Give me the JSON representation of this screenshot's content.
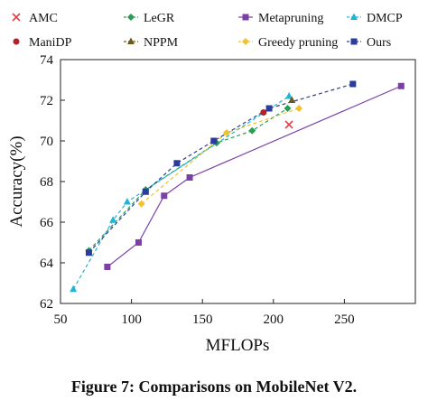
{
  "chart_data": {
    "type": "line",
    "xlabel": "MFLOPs",
    "ylabel": "Accuracy(%)",
    "xlim": [
      50,
      300
    ],
    "ylim": [
      62,
      74
    ],
    "xticks": [
      50,
      100,
      150,
      200,
      250
    ],
    "yticks": [
      62,
      64,
      66,
      68,
      70,
      72,
      74
    ],
    "grid": false,
    "legend_position": "top",
    "series": [
      {
        "name": "AMC",
        "color": "#e0404a",
        "marker": "x",
        "dash": "none",
        "x": [
          211
        ],
        "y": [
          70.8
        ]
      },
      {
        "name": "LeGR",
        "color": "#2a9d55",
        "marker": "diamond",
        "dash": "4,3",
        "x": [
          70,
          110,
          160,
          185,
          210
        ],
        "y": [
          64.6,
          67.6,
          69.9,
          70.5,
          71.6
        ]
      },
      {
        "name": "Metapruning",
        "color": "#7b3fa8",
        "marker": "square",
        "dash": "none",
        "x": [
          83,
          105,
          123,
          141,
          290
        ],
        "y": [
          63.8,
          65.0,
          67.3,
          68.2,
          72.7
        ]
      },
      {
        "name": "DMCP",
        "color": "#20b4d8",
        "marker": "triangle",
        "dash": "4,3",
        "x": [
          59,
          87,
          97,
          211
        ],
        "y": [
          62.7,
          66.1,
          67.0,
          72.2
        ]
      },
      {
        "name": "ManiDP",
        "color": "#b32025",
        "marker": "circle",
        "dash": "none",
        "x": [
          193
        ],
        "y": [
          71.4
        ]
      },
      {
        "name": "NPPM",
        "color": "#6b5a1e",
        "marker": "triangle",
        "dash": "4,3",
        "x": [
          213
        ],
        "y": [
          72.0
        ]
      },
      {
        "name": "Greedy pruning",
        "color": "#f2c12e",
        "marker": "diamond",
        "dash": "4,3",
        "x": [
          107,
          167,
          218
        ],
        "y": [
          66.9,
          70.4,
          71.6
        ]
      },
      {
        "name": "Ours",
        "color": "#2a3d9c",
        "marker": "square",
        "dash": "4,3",
        "x": [
          70,
          110,
          132,
          158,
          197,
          256
        ],
        "y": [
          64.5,
          67.5,
          68.9,
          70.0,
          71.6,
          72.8
        ]
      }
    ]
  },
  "caption": "Figure 7: Comparisons on MobileNet V2."
}
